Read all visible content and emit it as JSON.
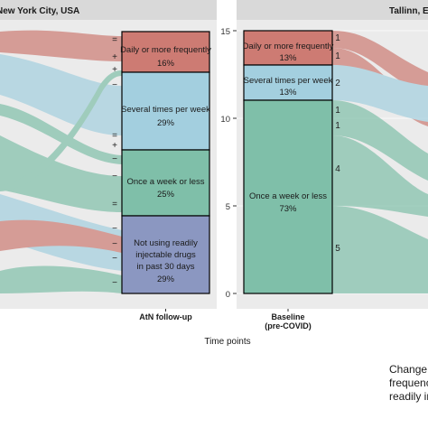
{
  "chart_data": {
    "type": "alluvial",
    "x_axis_title": "Time points",
    "caption_lines": [
      "Change",
      "frequenc",
      "readily in"
    ],
    "colors": {
      "daily_or_more": "#cd7b73",
      "several_times_week": "#a3cfdf",
      "once_week_or_less": "#7fbfa9",
      "not_using": "#8b97c1",
      "strip_bg": "#d9d9d9",
      "panel_bg": "#ebebeb"
    },
    "panels": [
      {
        "id": "nyc",
        "strip_label": "New York City, USA",
        "axis_category": "AtN follow-up",
        "stratum": {
          "daily_or_more": {
            "label": "Daily or more frequently",
            "pct": "16%"
          },
          "several_times_week": {
            "label": "Several times per week",
            "pct": "29%"
          },
          "once_week_or_less": {
            "label": "Once a week or less",
            "pct": "25%"
          },
          "not_using": {
            "label": [
              "Not using readily",
              "injectable drugs",
              "in past 30 days"
            ],
            "pct": "29%"
          }
        },
        "signs": [
          "=",
          "+",
          "+",
          "−",
          "=",
          "+",
          "−",
          "−",
          "=",
          "−",
          "−",
          "−",
          "−"
        ]
      },
      {
        "id": "tallinn",
        "strip_label": "Tallinn, Es",
        "axis_category": [
          "Baseline",
          "(pre-COVID)"
        ],
        "y_axis": {
          "ticks": [
            "0",
            "5",
            "10",
            "15"
          ],
          "range": [
            0,
            15.4
          ]
        },
        "stratum": {
          "daily_or_more": {
            "label": "Daily or more frequently",
            "pct": "13%",
            "count": 2
          },
          "several_times_week": {
            "label": "Several times per week",
            "pct": "13%",
            "count": 2
          },
          "once_week_or_less": {
            "label": "Once a week or less",
            "pct": "73%",
            "count": 11
          }
        },
        "flow_labels": [
          "1",
          "1",
          "2",
          "1",
          "1",
          "4",
          "5"
        ]
      }
    ]
  }
}
